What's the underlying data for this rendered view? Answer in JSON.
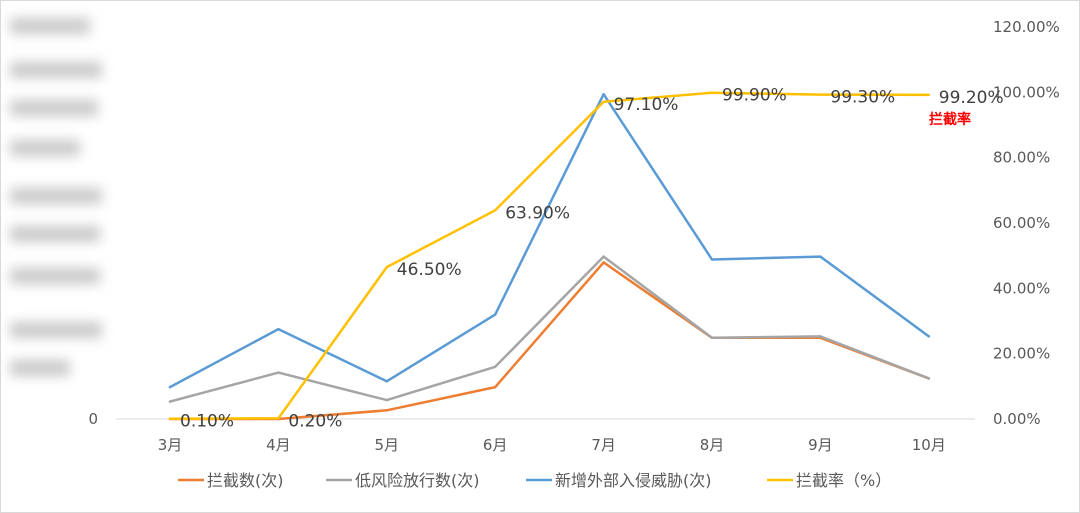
{
  "chart_data": {
    "type": "line",
    "categories": [
      "3月",
      "4月",
      "5月",
      "6月",
      "7月",
      "8月",
      "9月",
      "10月"
    ],
    "left_axis": {
      "ticks": [
        "0"
      ]
    },
    "right_axis": {
      "ticks": [
        "0.00%",
        "20.00%",
        "40.00%",
        "60.00%",
        "80.00%",
        "100.00%",
        "120.00%"
      ],
      "ylim": [
        0,
        120
      ]
    },
    "series": [
      {
        "name": "拦截数(次)",
        "color": "#ED7D31",
        "axis": "left",
        "values": [
          0,
          0,
          3,
          11,
          54,
          28,
          28,
          14
        ]
      },
      {
        "name": "低风险放行数(次)",
        "color": "#A5A5A5",
        "axis": "left",
        "values": [
          6,
          16,
          6.5,
          18,
          56,
          28,
          28.5,
          14
        ]
      },
      {
        "name": "新增外部入侵威胁(次)",
        "color": "#5B9BD5",
        "axis": "left",
        "values": [
          11,
          31,
          13,
          36,
          112,
          55,
          56,
          28.5
        ]
      },
      {
        "name": "拦截率（%）",
        "color": "#FFC000",
        "axis": "right",
        "values": [
          0.1,
          0.2,
          46.5,
          63.9,
          97.1,
          99.9,
          99.3,
          99.2
        ],
        "labels": [
          "0.10%",
          "0.20%",
          "46.50%",
          "63.90%",
          "97.10%",
          "99.90%",
          "99.30%",
          "99.20%"
        ]
      }
    ],
    "annotation": "拦截率",
    "legend_position": "bottom",
    "grid": false
  }
}
